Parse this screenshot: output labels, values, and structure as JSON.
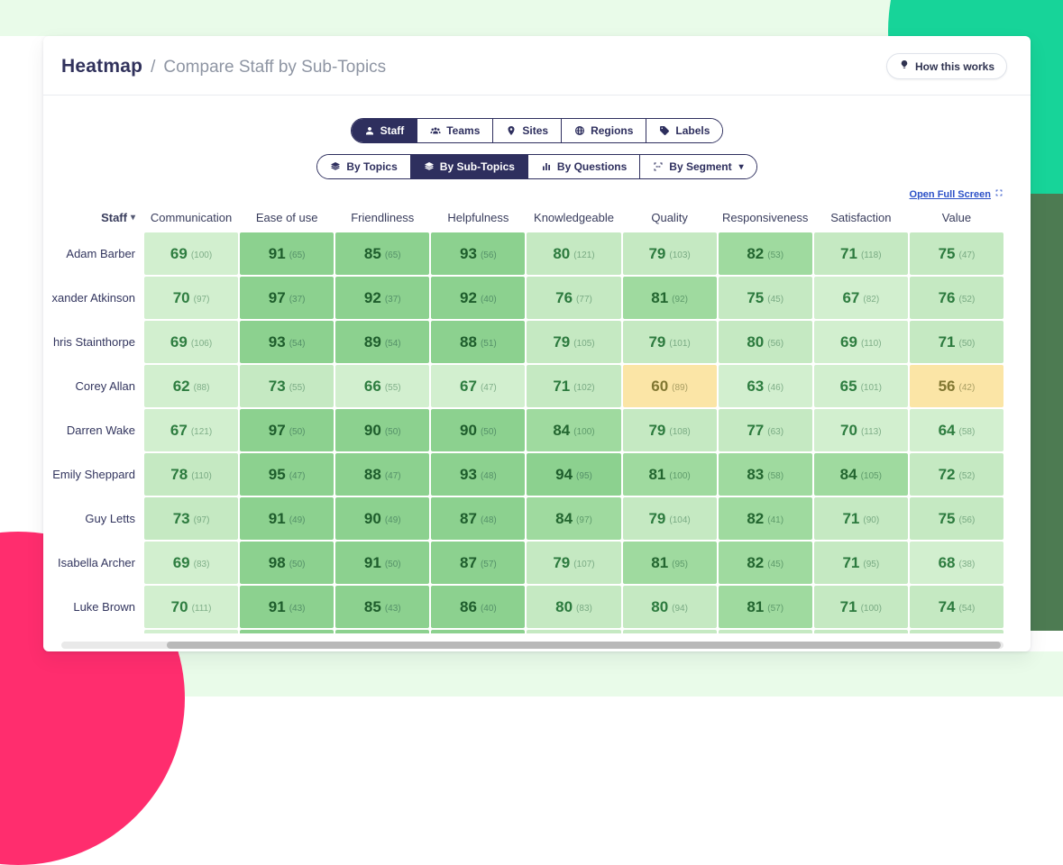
{
  "colors": {
    "band": "#e9fbe9",
    "mint": "#17d499",
    "sage": "#4d7b52",
    "pink": "#ff2d6e",
    "scroll_track": "#e9e9e9",
    "scroll_thumb": "#b9b9b9",
    "tab_navy": "#2e2f5e",
    "link_blue": "#2b50c7"
  },
  "header": {
    "title": "Heatmap",
    "separator": "/",
    "subtitle": "Compare Staff by Sub-Topics",
    "help_label": "How this works"
  },
  "entity_tabs": [
    {
      "label": "Staff",
      "icon": "person-icon",
      "active": true
    },
    {
      "label": "Teams",
      "icon": "people-icon",
      "active": false
    },
    {
      "label": "Sites",
      "icon": "pin-icon",
      "active": false
    },
    {
      "label": "Regions",
      "icon": "globe-icon",
      "active": false
    },
    {
      "label": "Labels",
      "icon": "tag-icon",
      "active": false
    }
  ],
  "view_tabs": [
    {
      "label": "By Topics",
      "icon": "layers-icon",
      "active": false
    },
    {
      "label": "By Sub-Topics",
      "icon": "layers-icon",
      "active": true
    },
    {
      "label": "By Questions",
      "icon": "bar-chart-icon",
      "active": false
    },
    {
      "label": "By Segment",
      "icon": "segment-icon",
      "active": false,
      "caret": true
    }
  ],
  "fullscreen_link": {
    "label": "Open Full Screen",
    "icon": "expand-icon"
  },
  "table": {
    "staff_column_header": "Staff",
    "columns": [
      "Communication",
      "Ease of use",
      "Friendliness",
      "Helpfulness",
      "Knowledgeable",
      "Quality",
      "Responsiveness",
      "Satisfaction",
      "Value"
    ],
    "rows": [
      {
        "name": "Adam Barber",
        "cells": [
          [
            69,
            100
          ],
          [
            91,
            65
          ],
          [
            85,
            65
          ],
          [
            93,
            56
          ],
          [
            80,
            121
          ],
          [
            79,
            103
          ],
          [
            82,
            53
          ],
          [
            71,
            118
          ],
          [
            75,
            47
          ]
        ]
      },
      {
        "name": "xander Atkinson",
        "cells": [
          [
            70,
            97
          ],
          [
            97,
            37
          ],
          [
            92,
            37
          ],
          [
            92,
            40
          ],
          [
            76,
            77
          ],
          [
            81,
            92
          ],
          [
            75,
            45
          ],
          [
            67,
            82
          ],
          [
            76,
            52
          ]
        ]
      },
      {
        "name": "hris Stainthorpe",
        "cells": [
          [
            69,
            106
          ],
          [
            93,
            54
          ],
          [
            89,
            54
          ],
          [
            88,
            51
          ],
          [
            79,
            105
          ],
          [
            79,
            101
          ],
          [
            80,
            56
          ],
          [
            69,
            110
          ],
          [
            71,
            50
          ]
        ]
      },
      {
        "name": "Corey Allan",
        "cells": [
          [
            62,
            88
          ],
          [
            73,
            55
          ],
          [
            66,
            55
          ],
          [
            67,
            47
          ],
          [
            71,
            102
          ],
          [
            60,
            89
          ],
          [
            63,
            46
          ],
          [
            65,
            101
          ],
          [
            56,
            42
          ]
        ]
      },
      {
        "name": "Darren Wake",
        "cells": [
          [
            67,
            121
          ],
          [
            97,
            50
          ],
          [
            90,
            50
          ],
          [
            90,
            50
          ],
          [
            84,
            100
          ],
          [
            79,
            108
          ],
          [
            77,
            63
          ],
          [
            70,
            113
          ],
          [
            64,
            58
          ]
        ]
      },
      {
        "name": "Emily Sheppard",
        "cells": [
          [
            78,
            110
          ],
          [
            95,
            47
          ],
          [
            88,
            47
          ],
          [
            93,
            48
          ],
          [
            94,
            95
          ],
          [
            81,
            100
          ],
          [
            83,
            58
          ],
          [
            84,
            105
          ],
          [
            72,
            52
          ]
        ]
      },
      {
        "name": "Guy Letts",
        "cells": [
          [
            73,
            97
          ],
          [
            91,
            49
          ],
          [
            90,
            49
          ],
          [
            87,
            48
          ],
          [
            84,
            97
          ],
          [
            79,
            104
          ],
          [
            82,
            41
          ],
          [
            71,
            90
          ],
          [
            75,
            56
          ]
        ]
      },
      {
        "name": "Isabella Archer",
        "cells": [
          [
            69,
            83
          ],
          [
            98,
            50
          ],
          [
            91,
            50
          ],
          [
            87,
            57
          ],
          [
            79,
            107
          ],
          [
            81,
            95
          ],
          [
            82,
            45
          ],
          [
            71,
            95
          ],
          [
            68,
            38
          ]
        ]
      },
      {
        "name": "Luke Brown",
        "cells": [
          [
            70,
            111
          ],
          [
            91,
            43
          ],
          [
            85,
            43
          ],
          [
            86,
            40
          ],
          [
            80,
            83
          ],
          [
            80,
            94
          ],
          [
            81,
            57
          ],
          [
            71,
            100
          ],
          [
            74,
            54
          ]
        ]
      }
    ],
    "partial_next_row": [
      "#d2efcf",
      "#8cd18f",
      "#8cd18f",
      "#8cd18f",
      "#c5e9c2",
      "#c5e9c2",
      "#c5e9c2",
      "#c5e9c2",
      "#c5e9c2"
    ]
  },
  "color_scale": [
    {
      "min": 0,
      "max": 60,
      "bg": "#fbe5a6",
      "fg": "#817732",
      "count": "#a89e63"
    },
    {
      "min": 61,
      "max": 70,
      "bg": "#d2efcf",
      "fg": "#2e7d40",
      "count": "#7fae88"
    },
    {
      "min": 71,
      "max": 80,
      "bg": "#c5e9c2",
      "fg": "#2c7a3e",
      "count": "#79aa83"
    },
    {
      "min": 81,
      "max": 84,
      "bg": "#9fda9f",
      "fg": "#236630",
      "count": "#5e9b6b"
    },
    {
      "min": 85,
      "max": 100,
      "bg": "#8cd18f",
      "fg": "#1e5d2c",
      "count": "#549068"
    }
  ]
}
